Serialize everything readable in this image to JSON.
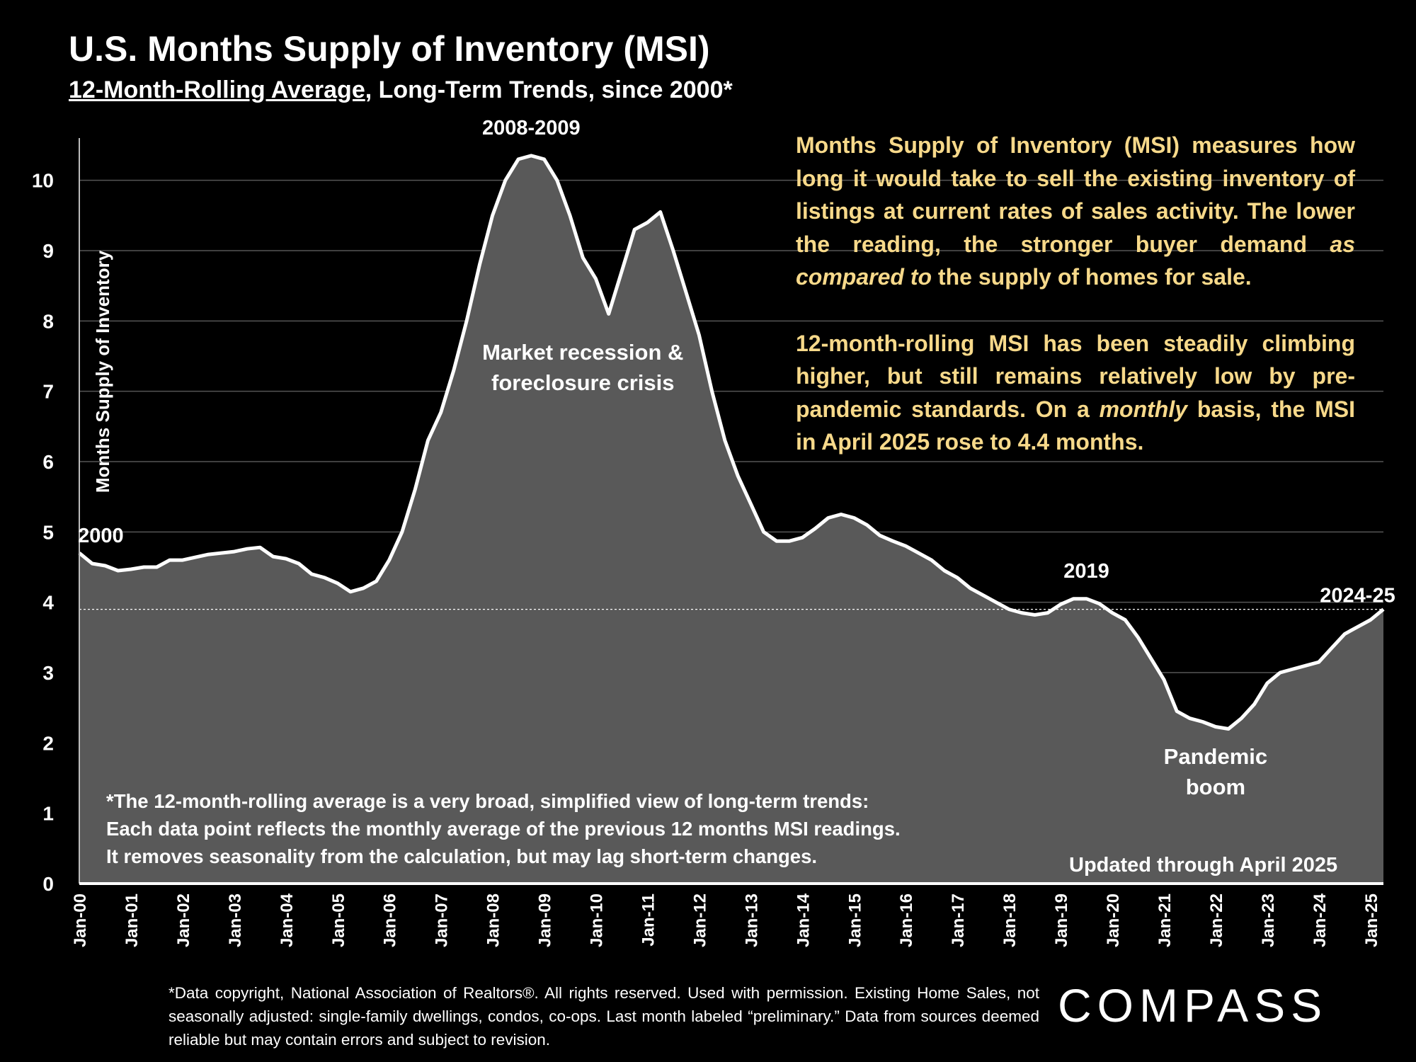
{
  "header": {
    "title": "U.S. Months Supply of Inventory (MSI)",
    "subtitle_underlined": "12-Month-Rolling Average",
    "subtitle_rest": ", Long-Term Trends, since 2000*"
  },
  "explanation": {
    "p1_a": "Months Supply of Inventory (MSI) measures how long it would take to sell the existing inventory of listings at current rates of sales activity. The lower the reading, the stronger buyer demand ",
    "p1_italic": "as compared to",
    "p1_b": " the supply of homes for sale.",
    "p2_a": "12-month-rolling MSI has been steadily climbing higher, but still remains relatively low by pre-pandemic standards. On a ",
    "p2_italic": "monthly",
    "p2_b": " basis, the MSI in April 2025 rose to 4.4 months."
  },
  "footnote_box": {
    "line1": "*The 12-month-rolling average is a very broad, simplified view of long-term trends:",
    "line2": "Each data point reflects the monthly average of the previous 12 months MSI readings.",
    "line3": "It removes seasonality from the calculation, but may lag short-term changes."
  },
  "updated": "Updated through April 2025",
  "source": "*Data copyright, National Association of Realtors®. All rights reserved. Used with permission. Existing Home Sales, not seasonally adjusted: single-family dwellings, condos, co-ops. Last month labeled “preliminary.” Data from sources deemed reliable but may contain errors and subject to revision.",
  "logo": "COMPASS",
  "colors": {
    "background": "#000000",
    "area": "#595959",
    "line": "#ffffff",
    "explanation_text": "#f7d98a",
    "gridline": "#555555"
  },
  "chart_data": {
    "type": "area",
    "ylabel": "Months Supply of Inventory",
    "xlabel": "",
    "ylim": [
      0,
      10.5
    ],
    "yticks": [
      0,
      1,
      2,
      3,
      4,
      5,
      6,
      7,
      8,
      9,
      10
    ],
    "xlim": [
      "2000-01",
      "2025-04"
    ],
    "xtick_labels": [
      "Jan-00",
      "Jan-01",
      "Jan-02",
      "Jan-03",
      "Jan-04",
      "Jan-05",
      "Jan-06",
      "Jan-07",
      "Jan-08",
      "Jan-09",
      "Jan-10",
      "Jan-11",
      "Jan-12",
      "Jan-13",
      "Jan-14",
      "Jan-15",
      "Jan-16",
      "Jan-17",
      "Jan-18",
      "Jan-19",
      "Jan-20",
      "Jan-21",
      "Jan-22",
      "Jan-23",
      "Jan-24",
      "Jan-25"
    ],
    "grid": true,
    "reference_line": 3.9,
    "series": [
      {
        "points": [
          [
            "2000-01",
            4.7
          ],
          [
            "2000-04",
            4.55
          ],
          [
            "2000-07",
            4.52
          ],
          [
            "2000-10",
            4.45
          ],
          [
            "2001-01",
            4.47
          ],
          [
            "2001-04",
            4.5
          ],
          [
            "2001-07",
            4.5
          ],
          [
            "2001-10",
            4.6
          ],
          [
            "2002-01",
            4.6
          ],
          [
            "2002-04",
            4.64
          ],
          [
            "2002-07",
            4.68
          ],
          [
            "2002-10",
            4.7
          ],
          [
            "2003-01",
            4.72
          ],
          [
            "2003-04",
            4.76
          ],
          [
            "2003-07",
            4.78
          ],
          [
            "2003-10",
            4.65
          ],
          [
            "2004-01",
            4.62
          ],
          [
            "2004-04",
            4.55
          ],
          [
            "2004-07",
            4.4
          ],
          [
            "2004-10",
            4.35
          ],
          [
            "2005-01",
            4.27
          ],
          [
            "2005-04",
            4.15
          ],
          [
            "2005-07",
            4.2
          ],
          [
            "2005-10",
            4.3
          ],
          [
            "2006-01",
            4.6
          ],
          [
            "2006-04",
            5.0
          ],
          [
            "2006-07",
            5.6
          ],
          [
            "2006-10",
            6.3
          ],
          [
            "2007-01",
            6.7
          ],
          [
            "2007-04",
            7.3
          ],
          [
            "2007-07",
            8.0
          ],
          [
            "2007-10",
            8.8
          ],
          [
            "2008-01",
            9.5
          ],
          [
            "2008-04",
            10.0
          ],
          [
            "2008-07",
            10.3
          ],
          [
            "2008-10",
            10.35
          ],
          [
            "2009-01",
            10.3
          ],
          [
            "2009-04",
            10.0
          ],
          [
            "2009-07",
            9.5
          ],
          [
            "2009-10",
            8.9
          ],
          [
            "2010-01",
            8.6
          ],
          [
            "2010-04",
            8.1
          ],
          [
            "2010-07",
            8.7
          ],
          [
            "2010-10",
            9.3
          ],
          [
            "2011-01",
            9.4
          ],
          [
            "2011-04",
            9.55
          ],
          [
            "2011-07",
            9.0
          ],
          [
            "2011-10",
            8.4
          ],
          [
            "2012-01",
            7.8
          ],
          [
            "2012-04",
            7.0
          ],
          [
            "2012-07",
            6.3
          ],
          [
            "2012-10",
            5.8
          ],
          [
            "2013-01",
            5.4
          ],
          [
            "2013-04",
            5.0
          ],
          [
            "2013-07",
            4.87
          ],
          [
            "2013-10",
            4.87
          ],
          [
            "2014-01",
            4.92
          ],
          [
            "2014-04",
            5.05
          ],
          [
            "2014-07",
            5.2
          ],
          [
            "2014-10",
            5.25
          ],
          [
            "2015-01",
            5.2
          ],
          [
            "2015-04",
            5.1
          ],
          [
            "2015-07",
            4.95
          ],
          [
            "2015-10",
            4.87
          ],
          [
            "2016-01",
            4.8
          ],
          [
            "2016-04",
            4.7
          ],
          [
            "2016-07",
            4.6
          ],
          [
            "2016-10",
            4.45
          ],
          [
            "2017-01",
            4.35
          ],
          [
            "2017-04",
            4.2
          ],
          [
            "2017-07",
            4.1
          ],
          [
            "2017-10",
            4.0
          ],
          [
            "2018-01",
            3.9
          ],
          [
            "2018-04",
            3.85
          ],
          [
            "2018-07",
            3.82
          ],
          [
            "2018-10",
            3.85
          ],
          [
            "2019-01",
            3.97
          ],
          [
            "2019-04",
            4.05
          ],
          [
            "2019-07",
            4.05
          ],
          [
            "2019-10",
            3.98
          ],
          [
            "2020-01",
            3.85
          ],
          [
            "2020-04",
            3.75
          ],
          [
            "2020-07",
            3.5
          ],
          [
            "2020-10",
            3.2
          ],
          [
            "2021-01",
            2.9
          ],
          [
            "2021-04",
            2.45
          ],
          [
            "2021-07",
            2.35
          ],
          [
            "2021-10",
            2.3
          ],
          [
            "2022-01",
            2.23
          ],
          [
            "2022-04",
            2.2
          ],
          [
            "2022-07",
            2.35
          ],
          [
            "2022-10",
            2.55
          ],
          [
            "2023-01",
            2.85
          ],
          [
            "2023-04",
            3.0
          ],
          [
            "2023-07",
            3.05
          ],
          [
            "2023-10",
            3.1
          ],
          [
            "2024-01",
            3.15
          ],
          [
            "2024-04",
            3.35
          ],
          [
            "2024-07",
            3.55
          ],
          [
            "2024-10",
            3.65
          ],
          [
            "2025-01",
            3.75
          ],
          [
            "2025-04",
            3.9
          ]
        ]
      }
    ],
    "annotations": [
      {
        "label": "2000",
        "x": "2000-06",
        "y": 4.85
      },
      {
        "label": "2008-2009",
        "x": "2008-10",
        "y": 10.65
      },
      {
        "label": "2019",
        "x": "2019-07",
        "y": 4.35
      },
      {
        "label": "2024-25",
        "x": "2024-10",
        "y": 4.0
      },
      {
        "label_lines": [
          "Market recession &",
          "foreclosure crisis"
        ],
        "x": "2009-10",
        "y": 7.45
      },
      {
        "label_lines": [
          "Pandemic",
          "boom"
        ],
        "x": "2022-01",
        "y": 1.7
      }
    ]
  }
}
